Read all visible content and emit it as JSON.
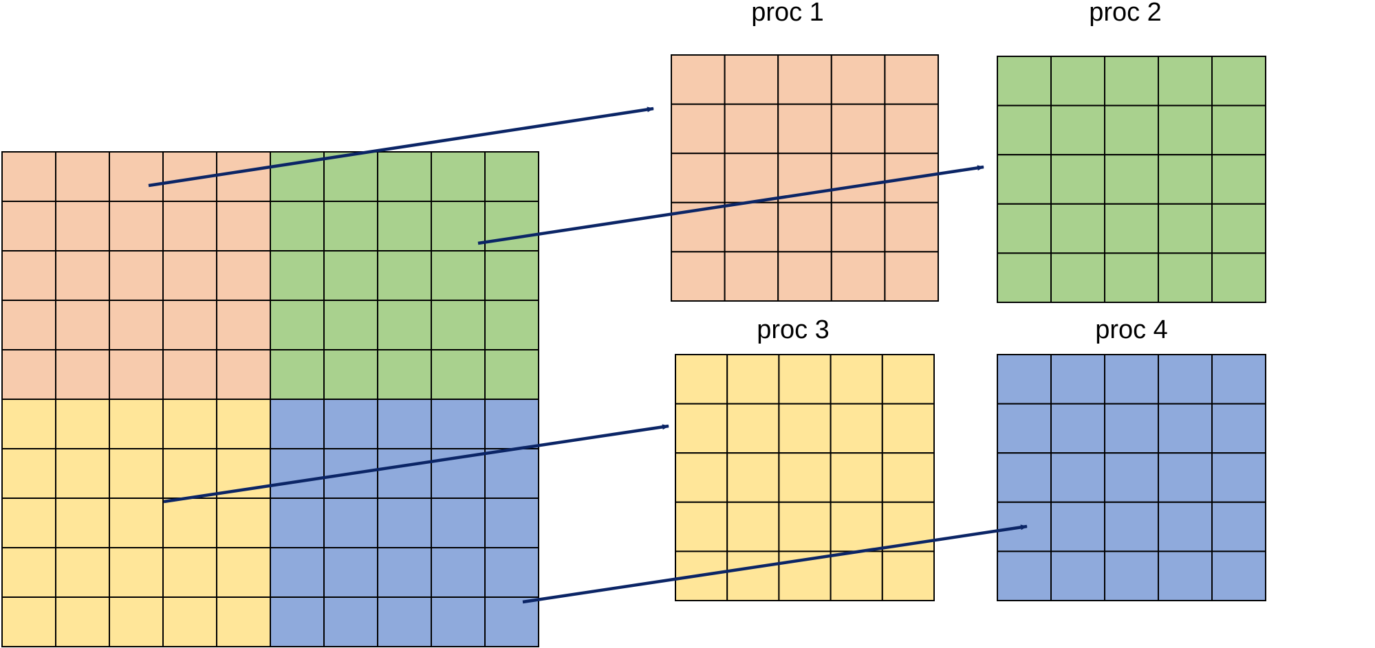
{
  "colors": {
    "proc1": "#f7cbad",
    "proc2": "#a9d18e",
    "proc3": "#ffe699",
    "proc4": "#8faadc",
    "arrow": "#0b2566"
  },
  "processes": [
    {
      "id": "proc1",
      "label": "proc 1",
      "rows": 5,
      "cols": 5
    },
    {
      "id": "proc2",
      "label": "proc 2",
      "rows": 5,
      "cols": 5
    },
    {
      "id": "proc3",
      "label": "proc 3",
      "rows": 5,
      "cols": 5
    },
    {
      "id": "proc4",
      "label": "proc 4",
      "rows": 5,
      "cols": 5
    }
  ],
  "global_grid": {
    "rows": 10,
    "cols": 10
  }
}
